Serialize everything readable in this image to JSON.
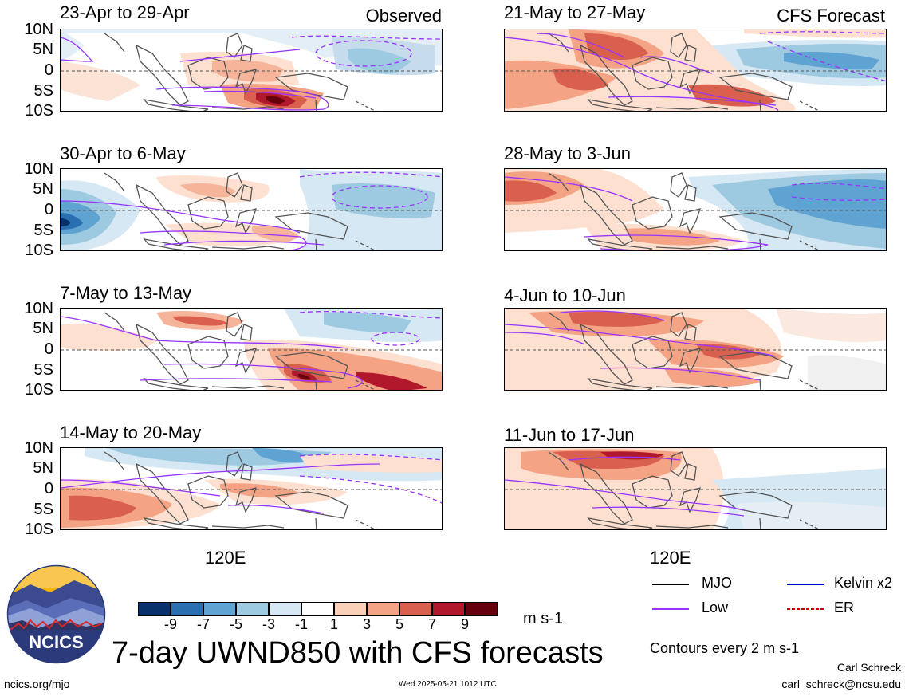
{
  "left_header": "Observed",
  "right_header": "CFS Forecast",
  "lat_labels": [
    "10N",
    "5N",
    "0",
    "5S",
    "10S"
  ],
  "lon_label": "120E",
  "panels_left": [
    {
      "title": "23-Apr to 29-Apr"
    },
    {
      "title": "30-Apr to 6-May"
    },
    {
      "title": "7-May to 13-May"
    },
    {
      "title": "14-May to 20-May"
    }
  ],
  "panels_right": [
    {
      "title": "21-May to 27-May"
    },
    {
      "title": "28-May to 3-Jun"
    },
    {
      "title": "4-Jun to 10-Jun"
    },
    {
      "title": "11-Jun to 17-Jun"
    }
  ],
  "colorbar": {
    "ticks": [
      "-9",
      "-7",
      "-5",
      "-3",
      "-1",
      "1",
      "3",
      "5",
      "7",
      "9"
    ],
    "colors": [
      "#08306b",
      "#2a6fb0",
      "#5fa3d2",
      "#9ecae1",
      "#d6e8f3",
      "#ffffff",
      "#fbd0b9",
      "#f4a384",
      "#d95f4e",
      "#b2182b",
      "#67000d"
    ],
    "units": "m s-1"
  },
  "title": "7-day UWND850 with CFS forecasts",
  "logo_text": "NCICS",
  "legend": {
    "mjo": "MJO",
    "kelvin": "Kelvin x2",
    "low": "Low",
    "er": "ER",
    "contours_note": "Contours every 2 m s-1",
    "colors": {
      "mjo": "#000000",
      "kelvin": "#0000cc",
      "low": "#9933ff",
      "er": "#cc0000"
    }
  },
  "footer": {
    "left": "ncics.org/mjo",
    "center": "Wed 2025-05-21 1012 UTC",
    "author": "Carl Schreck",
    "email": "carl_schreck@ncsu.edu"
  }
}
